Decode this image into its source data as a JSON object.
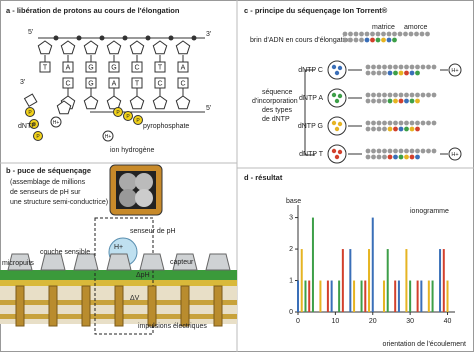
{
  "panel_a": {
    "title": "a - libération de protons au cours de l'élongation",
    "end_top_left": "5'",
    "end_top_right": "3'",
    "end_bottom_left": "3'",
    "end_bottom_right": "5'",
    "top_bases": [
      "T",
      "A",
      "G",
      "G",
      "C",
      "T",
      "A"
    ],
    "bottom_bases": [
      "C",
      "G",
      "A",
      "T",
      "C",
      "C"
    ],
    "dntp": "dNTP",
    "phosphate": "P",
    "proton": "H+",
    "ion": "ion hydrogène",
    "pyrophosphate": "pyrophosphate"
  },
  "panel_b": {
    "title": "b - puce de séquençage",
    "description": [
      "(assemblage de millions",
      "de senseurs de pH sur",
      "une structure semi-conductrice)"
    ],
    "sensor": "senseur de pH",
    "layer": "couche sensible",
    "wells": "micropuits",
    "detector": "capteur",
    "dph": "ΔpH",
    "dv": "ΔV",
    "proton": "H+",
    "pulses": "impulsions électriques"
  },
  "panel_c": {
    "title": "c - principe du séquençage Ion Torrent®",
    "template": "matrice",
    "primer": "amorce",
    "strand": "brin d'ADN en cours d'élongation",
    "order": [
      "séquence",
      "d'incorporation",
      "des types",
      "de dNTP"
    ],
    "flows": [
      "dNTP C",
      "dNTP A",
      "dNTP G",
      "dNTP T"
    ],
    "proton": "H+"
  },
  "panel_d": {
    "title": "d - résultat",
    "y_label": "base",
    "chart_label": "ionogramme",
    "x_label": "orientation de l'écoulement",
    "xlim": [
      0,
      42
    ],
    "ylim": [
      0,
      3.4
    ],
    "xticks": [
      0,
      10,
      20,
      30,
      40
    ],
    "yticks": [
      0,
      1,
      2,
      3
    ],
    "series": [
      {
        "color": "#3a6fb8",
        "x": [
          0,
          9,
          14,
          20,
          27,
          33,
          38
        ],
        "values": [
          1,
          1,
          2,
          3,
          1,
          1,
          2
        ]
      },
      {
        "color": "#3d9f48",
        "x": [
          2,
          4,
          11,
          17,
          24,
          30,
          36
        ],
        "values": [
          1,
          3,
          1,
          1,
          2,
          1,
          1
        ]
      },
      {
        "color": "#e6b422",
        "x": [
          1,
          6,
          15,
          19,
          23,
          29,
          35,
          40
        ],
        "values": [
          2,
          1,
          1,
          2,
          1,
          2,
          1,
          1
        ]
      },
      {
        "color": "#d2402c",
        "x": [
          3,
          8,
          12,
          18,
          26,
          32,
          39
        ],
        "values": [
          1,
          1,
          2,
          1,
          1,
          1,
          2
        ]
      }
    ]
  }
}
